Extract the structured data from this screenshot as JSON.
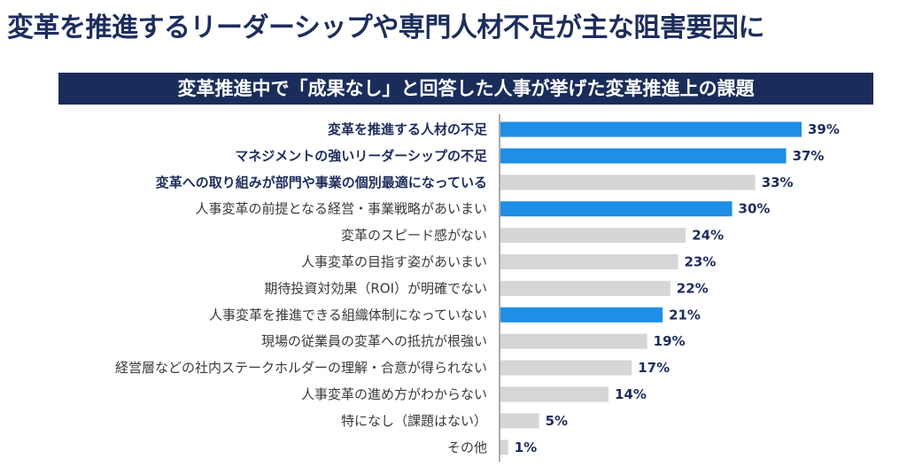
{
  "title": "変革を推進するリーダーシップや専門人材不足が主な阻害要因に",
  "subtitle": "変革推進中で「成果なし」と回答した人事が挙げた変革推進上の課題",
  "colors": {
    "highlight": "#1e8ee6",
    "normal": "#d6d6d6",
    "axis": "#555555",
    "text_dark": "#1d2d5c",
    "text_normal": "#3a3a3a"
  },
  "chart_data": {
    "type": "bar",
    "orientation": "horizontal",
    "unit": "%",
    "xlim": [
      0,
      39
    ],
    "categories": [
      "変革を推進する人材の不足",
      "マネジメントの強いリーダーシップの不足",
      "変革への取り組みが部門や事業の個別最適になっている",
      "人事変革の前提となる経営・事業戦略があいまい",
      "変革のスピード感がない",
      "人事変革の目指す姿があいまい",
      "期待投資対効果（ROI）が明確でない",
      "人事変革を推進できる組織体制になっていない",
      "現場の従業員の変革への抵抗が根強い",
      "経営層などの社内ステークホルダーの理解・合意が得られない",
      "人事変革の進め方がわからない",
      "特になし（課題はない）",
      "その他"
    ],
    "values": [
      39,
      37,
      33,
      30,
      24,
      23,
      22,
      21,
      19,
      17,
      14,
      5,
      1
    ],
    "value_labels": [
      "39%",
      "37%",
      "33%",
      "30%",
      "24%",
      "23%",
      "22%",
      "21%",
      "19%",
      "17%",
      "14%",
      "5%",
      "1%"
    ],
    "highlighted": [
      true,
      true,
      false,
      true,
      false,
      false,
      false,
      true,
      false,
      false,
      false,
      false,
      false
    ],
    "bold_labels": [
      true,
      true,
      true,
      false,
      false,
      false,
      false,
      false,
      false,
      false,
      false,
      false,
      false
    ]
  }
}
